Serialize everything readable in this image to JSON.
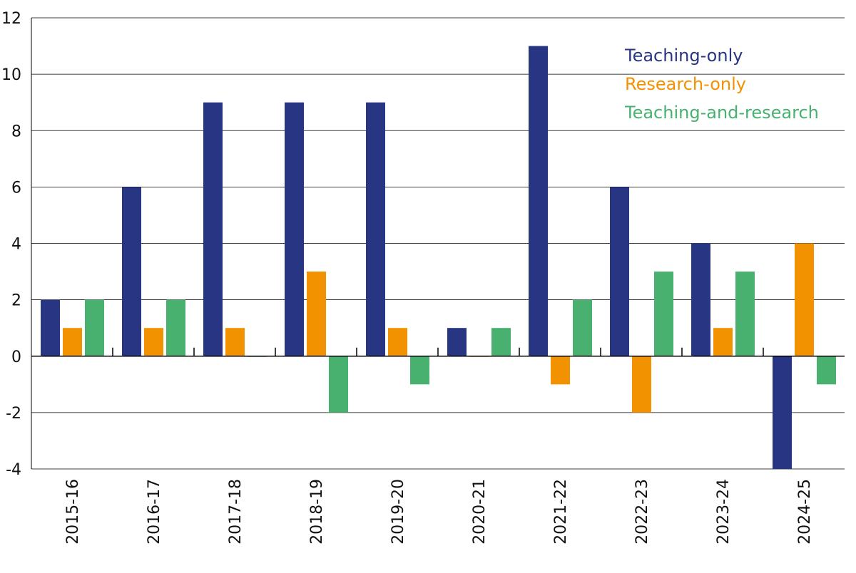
{
  "chart_data": {
    "type": "bar",
    "title": "",
    "xlabel": "",
    "ylabel": "",
    "categories": [
      "2015-16",
      "2016-17",
      "2017-18",
      "2018-19",
      "2019-20",
      "2020-21",
      "2021-22",
      "2022-23",
      "2023-24",
      "2024-25"
    ],
    "series": [
      {
        "name": "Teaching-only",
        "color": "#283583",
        "values": [
          2,
          6,
          9,
          9,
          9,
          1,
          11,
          6,
          4,
          -4
        ]
      },
      {
        "name": "Research-only",
        "color": "#F39200",
        "values": [
          1,
          1,
          1,
          3,
          1,
          0,
          -1,
          -2,
          1,
          4
        ]
      },
      {
        "name": "Teaching-and-research",
        "color": "#48B170",
        "values": [
          2,
          2,
          0,
          -2,
          -1,
          1,
          2,
          3,
          3,
          -1
        ]
      }
    ],
    "ylim": [
      -4,
      12
    ],
    "yticks": [
      -4,
      -2,
      0,
      2,
      4,
      6,
      8,
      10,
      12
    ],
    "grid": true,
    "legend": "top-right"
  }
}
